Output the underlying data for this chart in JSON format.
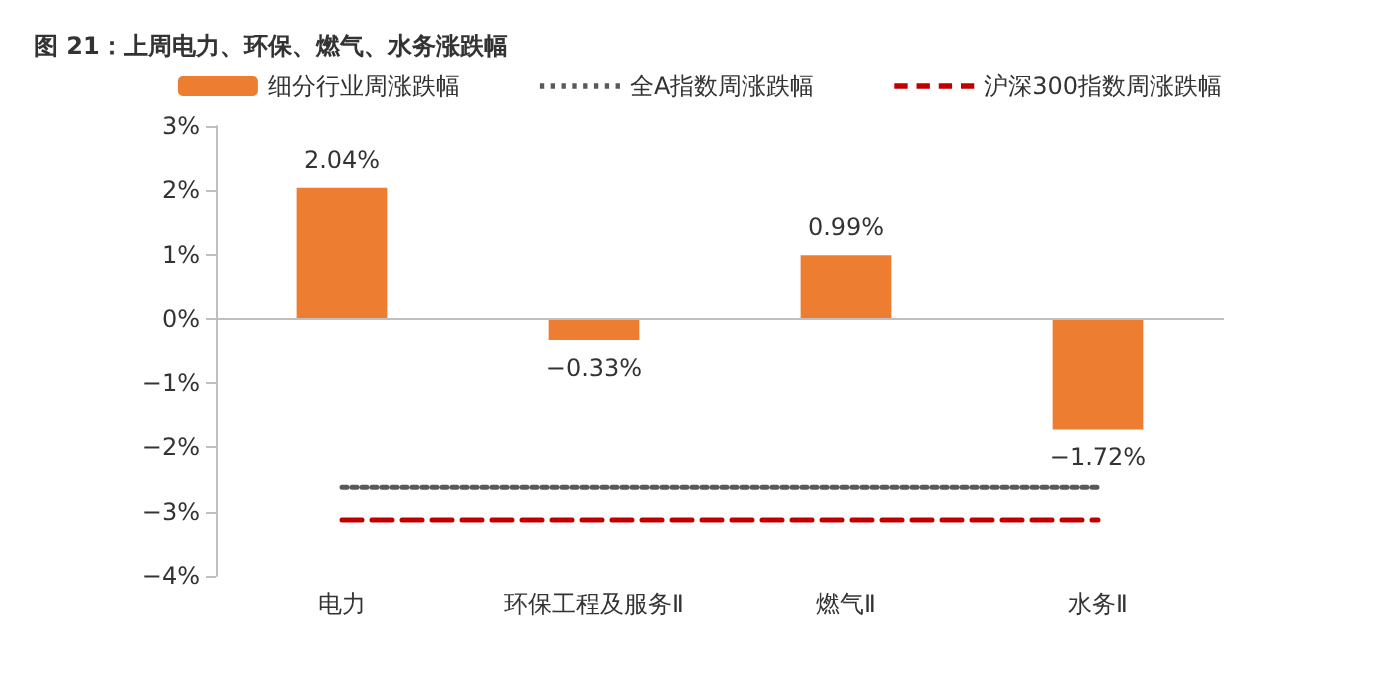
{
  "chart_data": {
    "type": "bar",
    "title": "图 21：上周电力、环保、燃气、水务涨跌幅",
    "categories": [
      "电力",
      "环保工程及服务Ⅱ",
      "燃气Ⅱ",
      "水务Ⅱ"
    ],
    "series": [
      {
        "name": "细分行业周涨跌幅",
        "color": "#ed7d31",
        "values": [
          2.04,
          -0.33,
          0.99,
          -1.72
        ],
        "value_labels": [
          "2.04%",
          "−0.33%",
          "0.99%",
          "−1.72%"
        ]
      },
      {
        "name": "全A指数周涨跌幅",
        "type": "line",
        "color": "#595959",
        "line_style": "dotted",
        "values": [
          -2.62,
          -2.62,
          -2.62,
          -2.62
        ]
      },
      {
        "name": "沪深300指数周涨跌幅",
        "type": "line",
        "color": "#c00000",
        "line_style": "dashed",
        "values": [
          -3.13,
          -3.13,
          -3.13,
          -3.13
        ]
      }
    ],
    "ylim": [
      -4,
      3
    ],
    "yticks": [
      {
        "value": -4,
        "label": "−4%"
      },
      {
        "value": -3,
        "label": "−3%"
      },
      {
        "value": -2,
        "label": "−2%"
      },
      {
        "value": -1,
        "label": "−1%"
      },
      {
        "value": 0,
        "label": "0%"
      },
      {
        "value": 1,
        "label": "1%"
      },
      {
        "value": 2,
        "label": "2%"
      },
      {
        "value": 3,
        "label": "3%"
      }
    ],
    "ref_lines": [
      {
        "axis": "y",
        "value": 0,
        "color": "#bfbfbf"
      }
    ],
    "grid": false,
    "legend": "top",
    "marker": "none"
  }
}
